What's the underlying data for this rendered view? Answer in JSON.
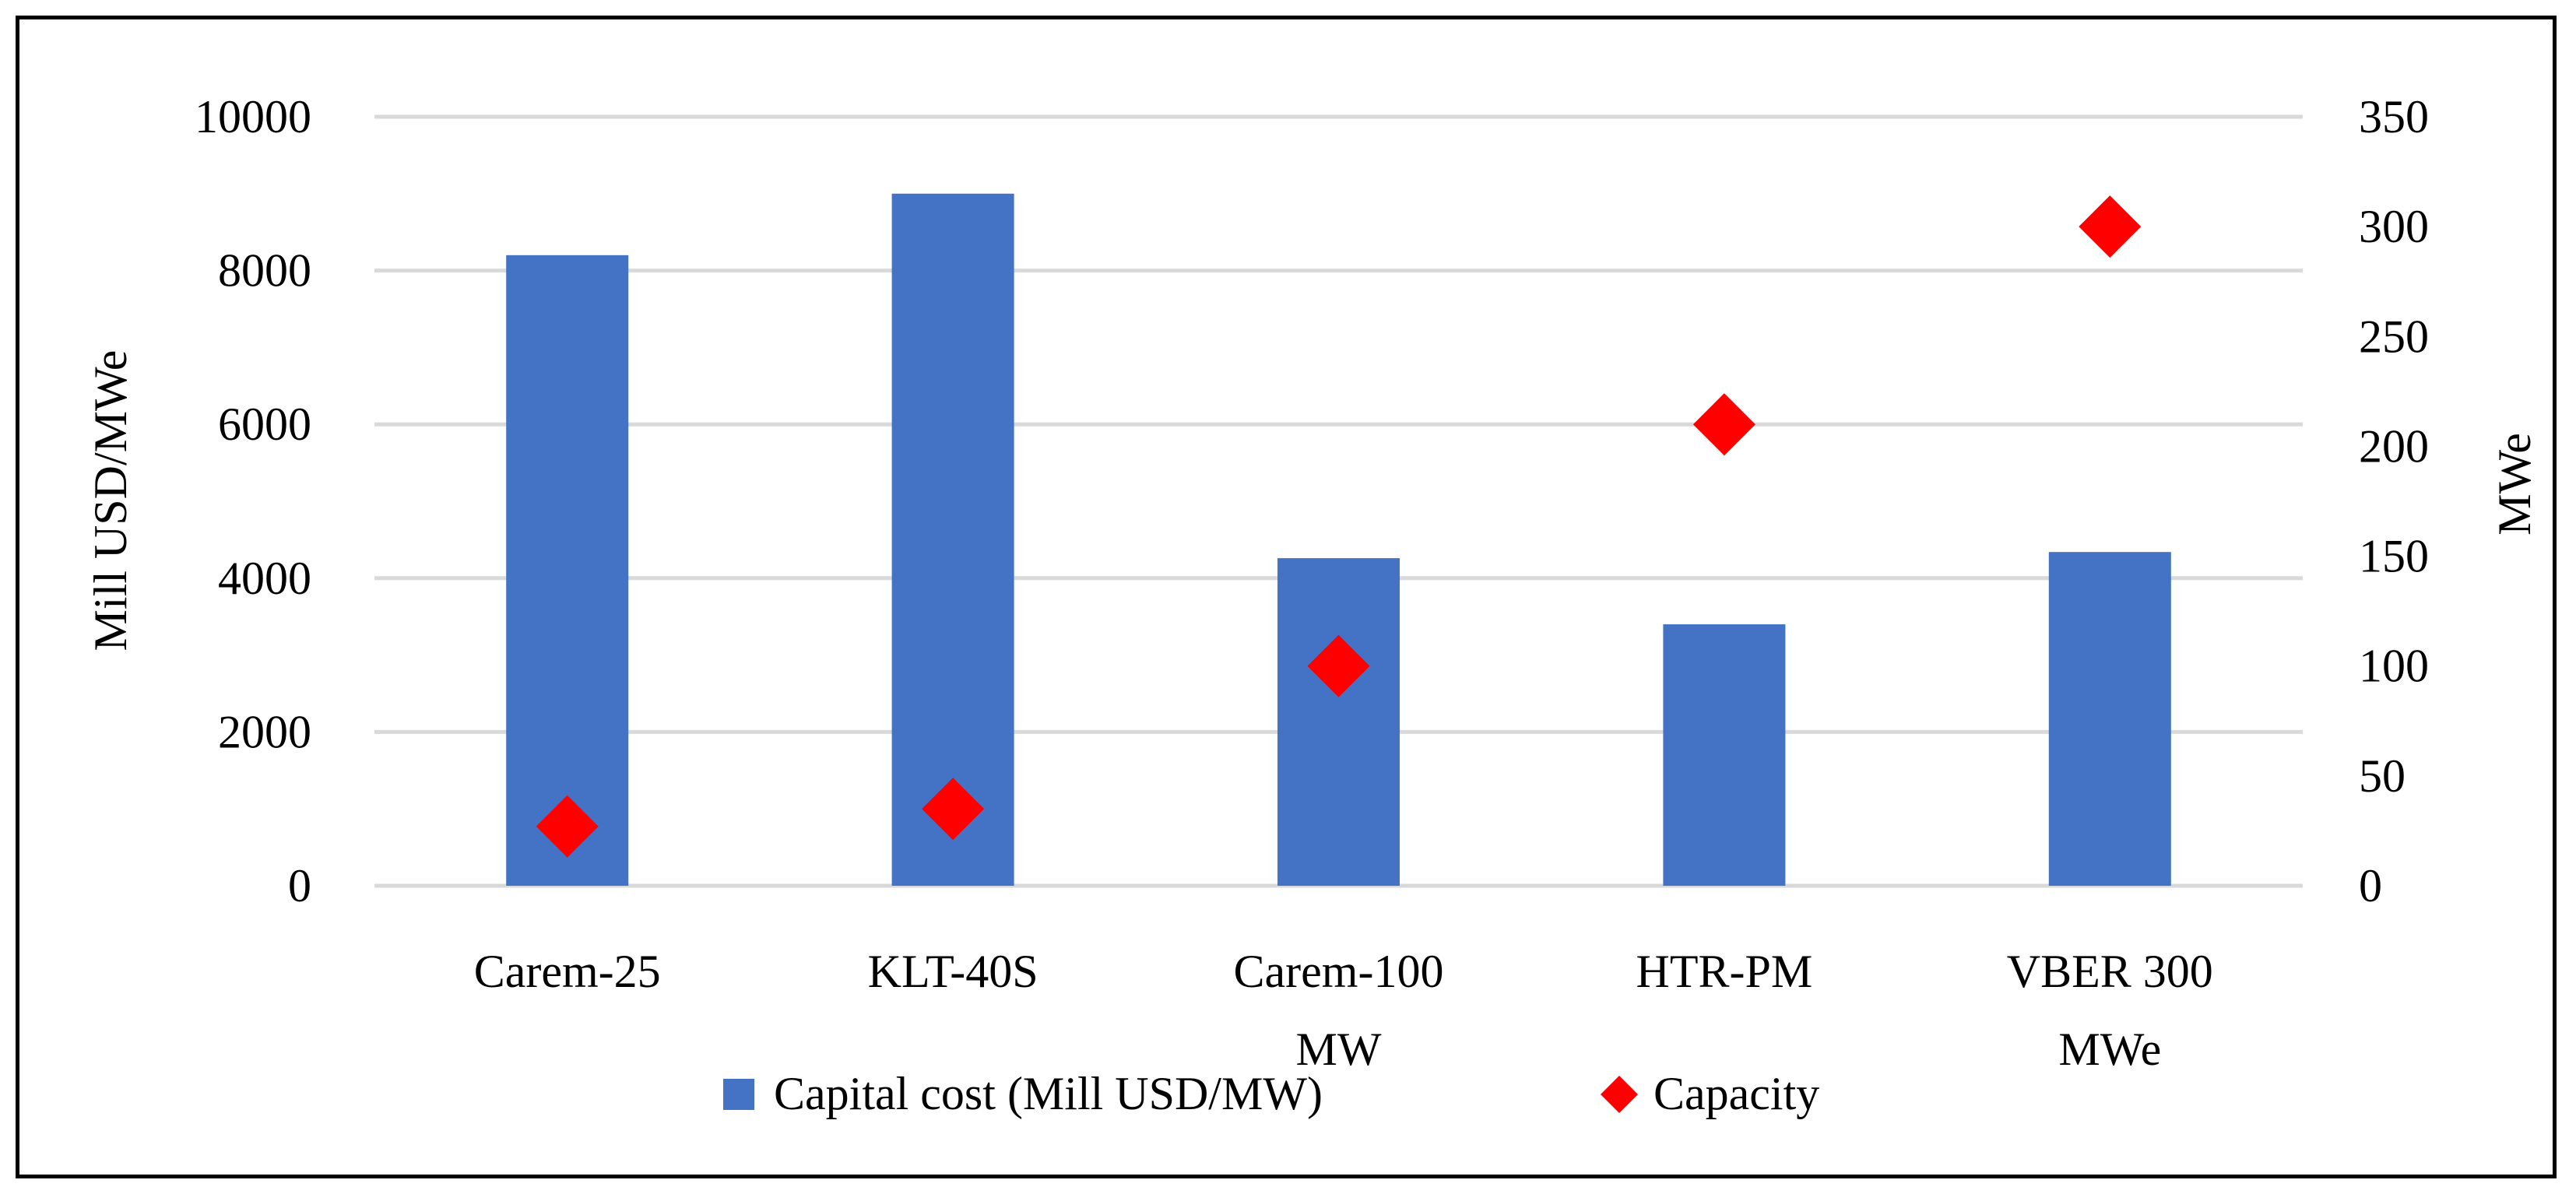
{
  "chart_data": {
    "type": "bar",
    "title": "",
    "categories": [
      "Carem-25",
      "KLT-40S",
      "Carem-100 MW",
      "HTR-PM",
      "VBER 300 MWe"
    ],
    "category_lines": [
      [
        "Carem-25"
      ],
      [
        "KLT-40S"
      ],
      [
        "Carem-100",
        "MW"
      ],
      [
        "HTR-PM"
      ],
      [
        "VBER 300",
        "MWe"
      ]
    ],
    "series": [
      {
        "name": "Capital cost (Mill USD/MW)",
        "type": "bar",
        "axis": "left",
        "values": [
          8200,
          9000,
          4260,
          3400,
          4340
        ],
        "color": "#4472C4"
      },
      {
        "name": "Capacity",
        "type": "scatter",
        "marker": "diamond",
        "axis": "right",
        "values": [
          27,
          35,
          100,
          210,
          300
        ],
        "color": "#FF0000"
      }
    ],
    "y_left": {
      "label": "Mill USD/MWe",
      "min": 0,
      "max": 10000,
      "ticks": [
        0,
        2000,
        4000,
        6000,
        8000,
        10000
      ]
    },
    "y_right": {
      "label": "MWe",
      "min": 0,
      "max": 350,
      "ticks": [
        0,
        50,
        100,
        150,
        200,
        250,
        300,
        350
      ]
    },
    "grid": true,
    "legend_position": "bottom"
  }
}
